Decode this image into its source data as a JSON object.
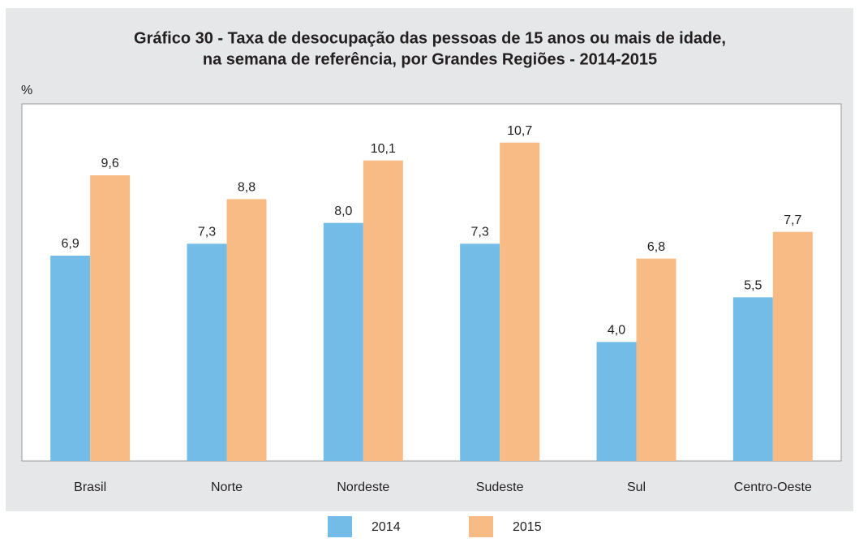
{
  "chart_data": {
    "type": "bar",
    "title": [
      "Gráfico 30 - Taxa de desocupação das pessoas de 15 anos ou mais de idade,",
      "na semana de referência, por Grandes Regiões - 2014-2015"
    ],
    "y_label": "%",
    "categories": [
      "Brasil",
      "Norte",
      "Nordeste",
      "Sudeste",
      "Sul",
      "Centro-Oeste"
    ],
    "series": [
      {
        "name": "2014",
        "color": "#74bce8",
        "values": [
          6.9,
          7.3,
          8.0,
          7.3,
          4.0,
          5.5
        ],
        "value_labels": [
          "6,9",
          "7,3",
          "8,0",
          "7,3",
          "4,0",
          "5,5"
        ]
      },
      {
        "name": "2015",
        "color": "#f9bb85",
        "values": [
          9.6,
          8.8,
          10.1,
          10.7,
          6.8,
          7.7
        ],
        "value_labels": [
          "9,6",
          "8,8",
          "10,1",
          "10,7",
          "6,8",
          "7,7"
        ]
      }
    ],
    "ylim": [
      0,
      12
    ],
    "grid": false,
    "legend": "bottom"
  }
}
